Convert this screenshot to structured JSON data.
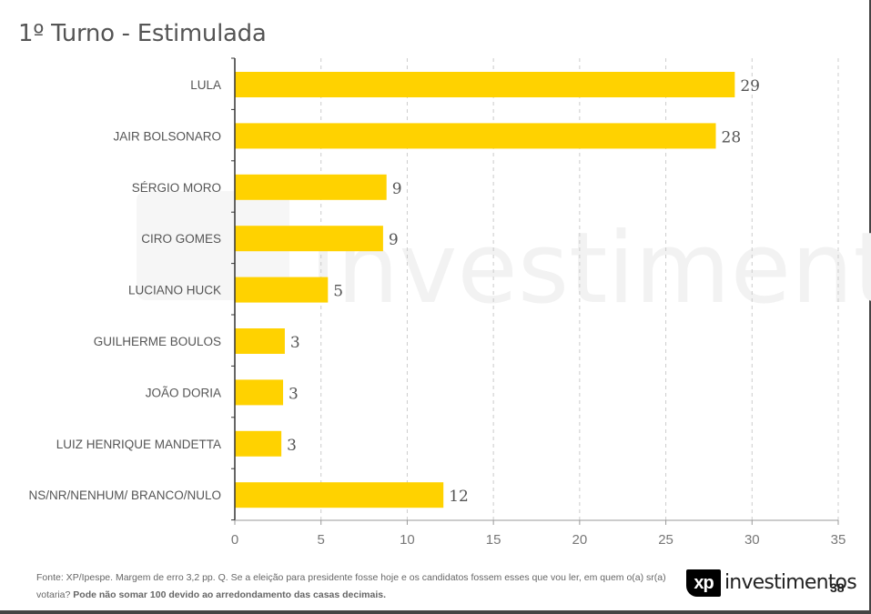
{
  "page": {
    "title": "1º Turno - Estimulada",
    "footer_source": "Fonte: XP/Ipespe. Margem de erro 3,2 pp. Q. Se a eleição para presidente fosse hoje e os candidatos fossem esses que vou ler, em quem o(a) sr(a) votaria?",
    "footer_note": "Pode não somar 100 devido ao arredondamento das casas decimais.",
    "logo_mark": "xp",
    "logo_word": "investimentos",
    "page_number": "38",
    "watermark_text": "investimentos"
  },
  "colors": {
    "bar": "#FFD200",
    "grid": "#cccccc",
    "axis": "#333333",
    "label": "#555555"
  },
  "chart_data": {
    "type": "bar",
    "orientation": "horizontal",
    "title": "1º Turno - Estimulada",
    "categories": [
      "LULA",
      "JAIR BOLSONARO",
      "SÉRGIO MORO",
      "CIRO GOMES",
      "LUCIANO HUCK",
      "GUILHERME BOULOS",
      "JOÃO DORIA",
      "LUIZ HENRIQUE MANDETTA",
      "NS/NR/NENHUM/ BRANCO/NULO"
    ],
    "values": [
      29,
      28,
      9,
      9,
      5,
      3,
      3,
      3,
      12
    ],
    "plotted_values": [
      29,
      27.9,
      8.8,
      8.6,
      5.4,
      2.9,
      2.8,
      2.7,
      12.1
    ],
    "xlim": [
      0,
      35
    ],
    "xticks": [
      0,
      5,
      10,
      15,
      20,
      25,
      30,
      35
    ],
    "grid": true,
    "grid_style": "dashed-vertical",
    "xlabel": "",
    "ylabel": "",
    "data_labels": true
  }
}
